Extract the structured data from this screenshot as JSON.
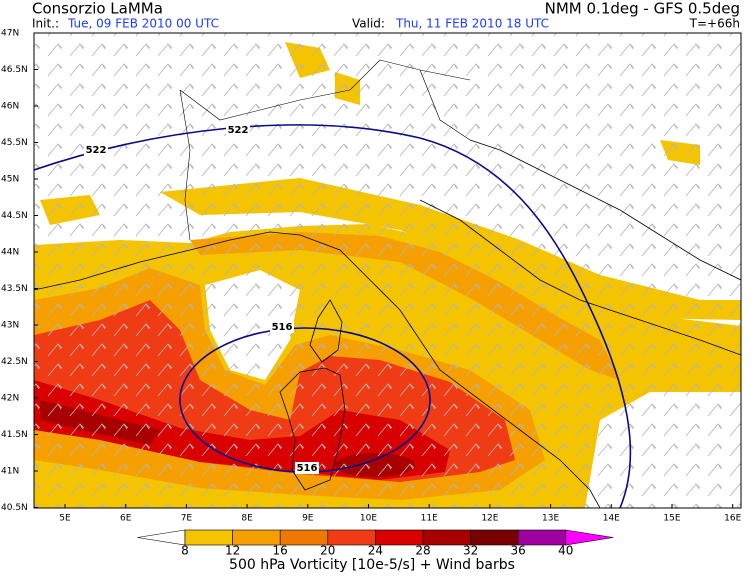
{
  "header": {
    "title": "Consorzio LaMMa",
    "model": "NMM 0.1deg - GFS 0.5deg",
    "init_label": "Init.:",
    "init_time": "Tue, 09 FEB 2010  00 UTC",
    "valid_label": "Valid:",
    "valid_time": "Thu, 11 FEB 2010  18 UTC",
    "lead_time": "T=+66h"
  },
  "map": {
    "lat_labels": [
      "47N",
      "46.5N",
      "46N",
      "45.5N",
      "45N",
      "44.5N",
      "44N",
      "43.5N",
      "43N",
      "42.5N",
      "42N",
      "41.5N",
      "41N",
      "40.5N"
    ],
    "lon_labels": [
      "5E",
      "6E",
      "7E",
      "8E",
      "9E",
      "10E",
      "11E",
      "12E",
      "13E",
      "14E",
      "15E",
      "16E"
    ],
    "contour_labels": [
      "522",
      "522",
      "516",
      "516"
    ]
  },
  "colorbar": {
    "levels": [
      8,
      12,
      16,
      20,
      24,
      28,
      32,
      36,
      40
    ],
    "colors": [
      "#ffffff",
      "#f5c400",
      "#f5a000",
      "#f07800",
      "#f03c14",
      "#d80000",
      "#a80000",
      "#780000",
      "#a000a0",
      "#ff00ff"
    ],
    "title": "500 hPa Vorticity [10e-5/s] + Wind barbs"
  }
}
